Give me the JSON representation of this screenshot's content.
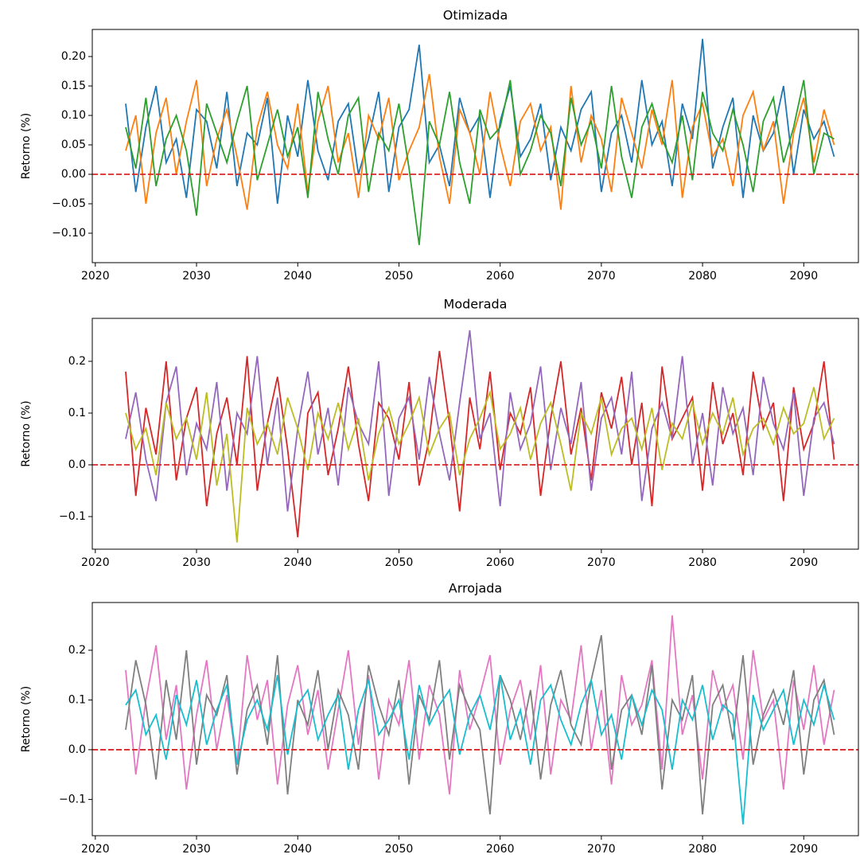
{
  "chart_data": [
    {
      "type": "line",
      "title": "Otimizada",
      "y_label": "Retorno (%)",
      "x": [
        2023,
        2024,
        2025,
        2026,
        2027,
        2028,
        2029,
        2030,
        2031,
        2032,
        2033,
        2034,
        2035,
        2036,
        2037,
        2038,
        2039,
        2040,
        2041,
        2042,
        2043,
        2044,
        2045,
        2046,
        2047,
        2048,
        2049,
        2050,
        2051,
        2052,
        2053,
        2054,
        2055,
        2056,
        2057,
        2058,
        2059,
        2060,
        2061,
        2062,
        2063,
        2064,
        2065,
        2066,
        2067,
        2068,
        2069,
        2070,
        2071,
        2072,
        2073,
        2074,
        2075,
        2076,
        2077,
        2078,
        2079,
        2080,
        2081,
        2082,
        2083,
        2084,
        2085,
        2086,
        2087,
        2088,
        2089,
        2090,
        2091,
        2092,
        2093
      ],
      "xlim": [
        2019.7,
        2095.4
      ],
      "xticks": [
        2020,
        2030,
        2040,
        2050,
        2060,
        2070,
        2080,
        2090
      ],
      "ylim": [
        -0.15,
        0.246
      ],
      "yticks": [
        {
          "value": -0.1,
          "label": "−0.10"
        },
        {
          "value": -0.05,
          "label": "−0.05"
        },
        {
          "value": 0,
          "label": "0.00"
        },
        {
          "value": 0.05,
          "label": "0.05"
        },
        {
          "value": 0.1,
          "label": "0.10"
        },
        {
          "value": 0.15,
          "label": "0.15"
        },
        {
          "value": 0.2,
          "label": "0.20"
        }
      ],
      "reference_line": {
        "value": 0,
        "color": "#d62728",
        "style": "dashed"
      },
      "series": [
        {
          "color": "#1f77b4",
          "values": [
            0.12,
            -0.03,
            0.08,
            0.15,
            0.02,
            0.06,
            -0.04,
            0.11,
            0.09,
            0.01,
            0.14,
            -0.02,
            0.07,
            0.05,
            0.13,
            -0.05,
            0.1,
            0.03,
            0.16,
            0.04,
            -0.01,
            0.09,
            0.12,
            0.0,
            0.06,
            0.14,
            -0.03,
            0.08,
            0.11,
            0.22,
            0.02,
            0.05,
            -0.02,
            0.13,
            0.07,
            0.1,
            -0.04,
            0.09,
            0.15,
            0.03,
            0.06,
            0.12,
            -0.01,
            0.08,
            0.04,
            0.11,
            0.14,
            -0.03,
            0.07,
            0.1,
            0.02,
            0.16,
            0.05,
            0.09,
            -0.02,
            0.12,
            0.06,
            0.23,
            0.01,
            0.08,
            0.13,
            -0.04,
            0.1,
            0.04,
            0.07,
            0.15,
            0.0,
            0.11,
            0.06,
            0.09,
            0.03
          ]
        },
        {
          "color": "#ff7f0e",
          "values": [
            0.04,
            0.1,
            -0.05,
            0.07,
            0.13,
            0.0,
            0.09,
            0.16,
            -0.02,
            0.06,
            0.11,
            0.03,
            -0.06,
            0.08,
            0.14,
            0.05,
            0.01,
            0.12,
            -0.03,
            0.09,
            0.15,
            0.02,
            0.07,
            -0.04,
            0.1,
            0.06,
            0.13,
            -0.01,
            0.04,
            0.08,
            0.17,
            0.03,
            -0.05,
            0.11,
            0.07,
            0.0,
            0.14,
            0.05,
            -0.02,
            0.09,
            0.12,
            0.04,
            0.08,
            -0.06,
            0.15,
            0.02,
            0.1,
            0.06,
            -0.03,
            0.13,
            0.07,
            0.01,
            0.11,
            0.05,
            0.16,
            -0.04,
            0.08,
            0.12,
            0.03,
            0.06,
            -0.02,
            0.1,
            0.14,
            0.04,
            0.09,
            -0.05,
            0.07,
            0.13,
            0.02,
            0.11,
            0.05
          ]
        },
        {
          "color": "#2ca02c",
          "values": [
            0.08,
            0.01,
            0.13,
            -0.02,
            0.06,
            0.1,
            0.04,
            -0.07,
            0.12,
            0.07,
            0.02,
            0.09,
            0.15,
            -0.01,
            0.05,
            0.11,
            0.03,
            0.08,
            -0.04,
            0.14,
            0.06,
            0.0,
            0.1,
            0.13,
            -0.03,
            0.07,
            0.04,
            0.12,
            0.01,
            -0.12,
            0.09,
            0.05,
            0.14,
            0.02,
            -0.05,
            0.11,
            0.06,
            0.08,
            0.16,
            0.0,
            0.04,
            0.1,
            0.07,
            -0.02,
            0.13,
            0.05,
            0.09,
            0.01,
            0.15,
            0.03,
            -0.04,
            0.08,
            0.12,
            0.06,
            0.02,
            0.1,
            -0.01,
            0.14,
            0.07,
            0.04,
            0.11,
            0.05,
            -0.03,
            0.09,
            0.13,
            0.02,
            0.08,
            0.16,
            0.0,
            0.07,
            0.06
          ]
        }
      ]
    },
    {
      "type": "line",
      "title": "Moderada",
      "y_label": "Retorno (%)",
      "x": [
        2023,
        2024,
        2025,
        2026,
        2027,
        2028,
        2029,
        2030,
        2031,
        2032,
        2033,
        2034,
        2035,
        2036,
        2037,
        2038,
        2039,
        2040,
        2041,
        2042,
        2043,
        2044,
        2045,
        2046,
        2047,
        2048,
        2049,
        2050,
        2051,
        2052,
        2053,
        2054,
        2055,
        2056,
        2057,
        2058,
        2059,
        2060,
        2061,
        2062,
        2063,
        2064,
        2065,
        2066,
        2067,
        2068,
        2069,
        2070,
        2071,
        2072,
        2073,
        2074,
        2075,
        2076,
        2077,
        2078,
        2079,
        2080,
        2081,
        2082,
        2083,
        2084,
        2085,
        2086,
        2087,
        2088,
        2089,
        2090,
        2091,
        2092,
        2093
      ],
      "xlim": [
        2019.7,
        2095.4
      ],
      "xticks": [
        2020,
        2030,
        2040,
        2050,
        2060,
        2070,
        2080,
        2090
      ],
      "ylim": [
        -0.163,
        0.283
      ],
      "yticks": [
        {
          "value": -0.1,
          "label": "−0.1"
        },
        {
          "value": 0,
          "label": "0.0"
        },
        {
          "value": 0.1,
          "label": "0.1"
        },
        {
          "value": 0.2,
          "label": "0.2"
        }
      ],
      "reference_line": {
        "value": 0,
        "color": "#d62728",
        "style": "dashed"
      },
      "series": [
        {
          "color": "#d62728",
          "values": [
            0.18,
            -0.06,
            0.11,
            0.02,
            0.2,
            -0.03,
            0.09,
            0.15,
            -0.08,
            0.06,
            0.13,
            0.0,
            0.21,
            -0.05,
            0.08,
            0.17,
            0.03,
            -0.14,
            0.1,
            0.14,
            -0.02,
            0.07,
            0.19,
            0.04,
            -0.07,
            0.12,
            0.09,
            0.01,
            0.16,
            -0.04,
            0.05,
            0.22,
            0.08,
            -0.09,
            0.13,
            0.03,
            0.18,
            -0.01,
            0.1,
            0.06,
            0.15,
            -0.06,
            0.09,
            0.2,
            0.02,
            0.11,
            -0.03,
            0.14,
            0.07,
            0.17,
            0.0,
            0.12,
            -0.08,
            0.19,
            0.05,
            0.09,
            0.13,
            -0.05,
            0.16,
            0.04,
            0.1,
            -0.02,
            0.18,
            0.07,
            0.12,
            -0.07,
            0.15,
            0.03,
            0.08,
            0.2,
            0.01
          ]
        },
        {
          "color": "#9467bd",
          "values": [
            0.05,
            0.14,
            0.01,
            -0.07,
            0.12,
            0.19,
            -0.02,
            0.08,
            0.03,
            0.16,
            -0.05,
            0.1,
            0.06,
            0.21,
            0.0,
            0.13,
            -0.09,
            0.07,
            0.18,
            0.02,
            0.11,
            -0.04,
            0.15,
            0.08,
            0.04,
            0.2,
            -0.06,
            0.09,
            0.13,
            0.01,
            0.17,
            0.06,
            -0.03,
            0.12,
            0.26,
            0.05,
            0.1,
            -0.08,
            0.14,
            0.03,
            0.08,
            0.19,
            -0.01,
            0.11,
            0.04,
            0.16,
            -0.05,
            0.09,
            0.13,
            0.02,
            0.18,
            -0.07,
            0.07,
            0.12,
            0.05,
            0.21,
            0.0,
            0.1,
            -0.04,
            0.15,
            0.06,
            0.11,
            -0.02,
            0.17,
            0.08,
            0.03,
            0.14,
            -0.06,
            0.09,
            0.12,
            0.04
          ]
        },
        {
          "color": "#bcbd22",
          "values": [
            0.1,
            0.03,
            0.07,
            -0.02,
            0.12,
            0.05,
            0.09,
            0.01,
            0.14,
            -0.04,
            0.06,
            -0.15,
            0.11,
            0.04,
            0.08,
            0.02,
            0.13,
            0.07,
            -0.01,
            0.1,
            0.05,
            0.12,
            0.03,
            0.09,
            -0.03,
            0.06,
            0.11,
            0.04,
            0.08,
            0.13,
            0.02,
            0.07,
            0.1,
            -0.02,
            0.05,
            0.09,
            0.14,
            0.03,
            0.06,
            0.11,
            0.01,
            0.08,
            0.12,
            0.04,
            -0.05,
            0.1,
            0.06,
            0.13,
            0.02,
            0.07,
            0.09,
            0.03,
            0.11,
            -0.01,
            0.08,
            0.05,
            0.12,
            0.04,
            0.1,
            0.06,
            0.13,
            0.02,
            0.07,
            0.09,
            0.04,
            0.11,
            0.06,
            0.08,
            0.15,
            0.05,
            0.09
          ]
        }
      ]
    },
    {
      "type": "line",
      "title": "Arrojada",
      "y_label": "Retorno (%)",
      "x": [
        2023,
        2024,
        2025,
        2026,
        2027,
        2028,
        2029,
        2030,
        2031,
        2032,
        2033,
        2034,
        2035,
        2036,
        2037,
        2038,
        2039,
        2040,
        2041,
        2042,
        2043,
        2044,
        2045,
        2046,
        2047,
        2048,
        2049,
        2050,
        2051,
        2052,
        2053,
        2054,
        2055,
        2056,
        2057,
        2058,
        2059,
        2060,
        2061,
        2062,
        2063,
        2064,
        2065,
        2066,
        2067,
        2068,
        2069,
        2070,
        2071,
        2072,
        2073,
        2074,
        2075,
        2076,
        2077,
        2078,
        2079,
        2080,
        2081,
        2082,
        2083,
        2084,
        2085,
        2086,
        2087,
        2088,
        2089,
        2090,
        2091,
        2092,
        2093
      ],
      "xlim": [
        2019.7,
        2095.4
      ],
      "xticks": [
        2020,
        2030,
        2040,
        2050,
        2060,
        2070,
        2080,
        2090
      ],
      "ylim": [
        -0.173,
        0.296
      ],
      "yticks": [
        {
          "value": -0.1,
          "label": "−0.1"
        },
        {
          "value": 0,
          "label": "0.0"
        },
        {
          "value": 0.1,
          "label": "0.1"
        },
        {
          "value": 0.2,
          "label": "0.2"
        }
      ],
      "reference_line": {
        "value": 0,
        "color": "#d62728",
        "style": "dashed"
      },
      "series": [
        {
          "color": "#e377c2",
          "values": [
            0.16,
            -0.05,
            0.1,
            0.21,
            0.02,
            0.13,
            -0.08,
            0.07,
            0.18,
            0.0,
            0.11,
            -0.03,
            0.19,
            0.06,
            0.14,
            -0.07,
            0.09,
            0.17,
            0.03,
            0.12,
            -0.04,
            0.08,
            0.2,
            0.01,
            0.15,
            -0.06,
            0.1,
            0.05,
            0.18,
            -0.02,
            0.13,
            0.07,
            -0.09,
            0.16,
            0.04,
            0.11,
            0.19,
            -0.03,
            0.08,
            0.14,
            0.02,
            0.17,
            -0.05,
            0.1,
            0.06,
            0.21,
            0.0,
            0.12,
            -0.07,
            0.15,
            0.05,
            0.09,
            0.18,
            -0.04,
            0.27,
            0.03,
            0.11,
            -0.06,
            0.16,
            0.08,
            0.13,
            -0.02,
            0.2,
            0.06,
            0.1,
            -0.08,
            0.14,
            0.04,
            0.17,
            0.01,
            0.12
          ]
        },
        {
          "color": "#7f7f7f",
          "values": [
            0.04,
            0.18,
            0.09,
            -0.06,
            0.14,
            0.02,
            0.2,
            -0.03,
            0.11,
            0.07,
            0.15,
            -0.05,
            0.08,
            0.13,
            0.01,
            0.19,
            -0.09,
            0.1,
            0.05,
            0.16,
            0.0,
            0.12,
            0.07,
            -0.04,
            0.17,
            0.09,
            0.03,
            0.14,
            -0.07,
            0.11,
            0.06,
            0.18,
            -0.02,
            0.13,
            0.08,
            0.04,
            -0.13,
            0.15,
            0.1,
            0.02,
            0.12,
            -0.06,
            0.09,
            0.16,
            0.05,
            0.01,
            0.14,
            0.23,
            -0.04,
            0.08,
            0.11,
            0.03,
            0.17,
            -0.08,
            0.1,
            0.06,
            0.15,
            -0.13,
            0.09,
            0.13,
            0.02,
            0.19,
            -0.03,
            0.07,
            0.12,
            0.05,
            0.16,
            -0.05,
            0.1,
            0.14,
            0.03
          ]
        },
        {
          "color": "#17becf",
          "values": [
            0.09,
            0.12,
            0.03,
            0.07,
            -0.02,
            0.11,
            0.05,
            0.14,
            0.01,
            0.08,
            0.13,
            -0.03,
            0.06,
            0.1,
            0.04,
            0.15,
            -0.01,
            0.09,
            0.12,
            0.02,
            0.07,
            0.11,
            -0.04,
            0.08,
            0.14,
            0.03,
            0.06,
            0.1,
            -0.02,
            0.13,
            0.05,
            0.09,
            0.12,
            -0.01,
            0.07,
            0.11,
            0.04,
            0.15,
            0.02,
            0.08,
            -0.03,
            0.1,
            0.13,
            0.06,
            0.01,
            0.09,
            0.14,
            0.03,
            0.07,
            -0.02,
            0.11,
            0.05,
            0.12,
            0.08,
            -0.04,
            0.1,
            0.06,
            0.13,
            0.02,
            0.09,
            0.07,
            -0.15,
            0.11,
            0.04,
            0.08,
            0.12,
            0.01,
            0.1,
            0.05,
            0.13,
            0.06
          ]
        }
      ]
    }
  ]
}
